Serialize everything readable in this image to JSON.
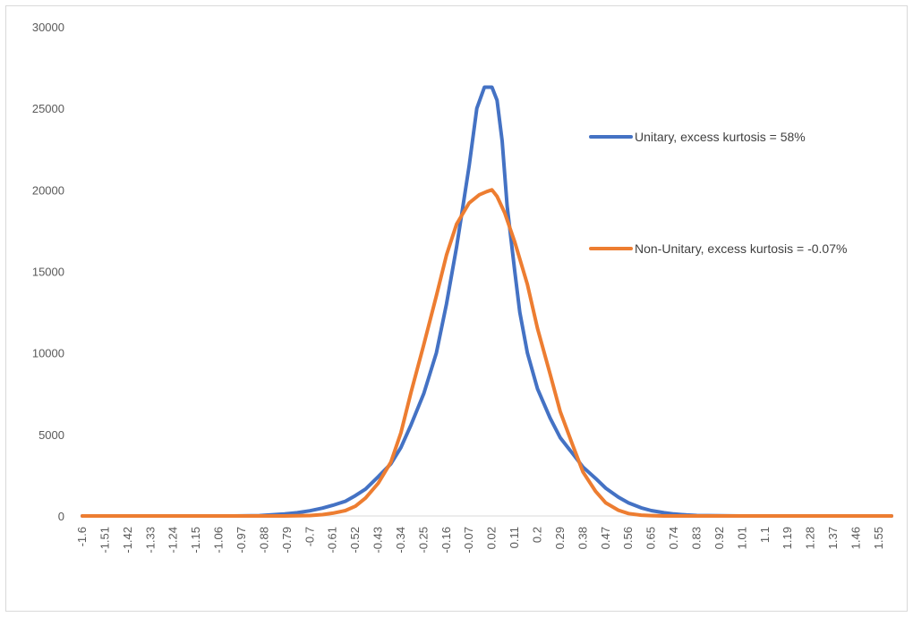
{
  "chart_data": {
    "type": "line",
    "title": "",
    "xlabel": "",
    "ylabel": "",
    "ylim": [
      0,
      30000
    ],
    "y_ticks": [
      "0",
      "5000",
      "10000",
      "15000",
      "20000",
      "25000",
      "30000"
    ],
    "x_ticks": [
      "-1.6",
      "-1.51",
      "-1.42",
      "-1.33",
      "-1.24",
      "-1.15",
      "-1.06",
      "-0.97",
      "-0.88",
      "-0.79",
      "-0.7",
      "-0.61",
      "-0.52",
      "-0.43",
      "-0.34",
      "-0.25",
      "-0.16",
      "-0.07",
      "0.02",
      "0.11",
      "0.2",
      "0.29",
      "0.38",
      "0.47",
      "0.56",
      "0.65",
      "0.74",
      "0.83",
      "0.92",
      "1.01",
      "1.1",
      "1.19",
      "1.28",
      "1.37",
      "1.46",
      "1.55"
    ],
    "xlim": [
      -1.6,
      1.6
    ],
    "grid": false,
    "legend_position": "right",
    "series": [
      {
        "name": "Unitary, excess kurtosis = 58%",
        "color": "#4472c4",
        "x": [
          -1.6,
          -1.0,
          -0.9,
          -0.88,
          -0.8,
          -0.75,
          -0.7,
          -0.65,
          -0.61,
          -0.56,
          -0.52,
          -0.48,
          -0.43,
          -0.38,
          -0.34,
          -0.3,
          -0.25,
          -0.2,
          -0.16,
          -0.12,
          -0.1,
          -0.07,
          -0.04,
          -0.01,
          0.0,
          0.02,
          0.04,
          0.06,
          0.08,
          0.11,
          0.13,
          0.16,
          0.2,
          0.25,
          0.29,
          0.34,
          0.38,
          0.43,
          0.47,
          0.52,
          0.56,
          0.61,
          0.65,
          0.7,
          0.74,
          0.79,
          0.83,
          0.92,
          1.0,
          1.6
        ],
        "y": [
          0,
          0,
          20,
          40,
          120,
          200,
          320,
          480,
          650,
          900,
          1250,
          1650,
          2400,
          3200,
          4200,
          5600,
          7500,
          10000,
          13000,
          16500,
          18500,
          21500,
          25000,
          26300,
          26300,
          26300,
          25500,
          23000,
          19000,
          15000,
          12500,
          10000,
          7800,
          6000,
          4800,
          3800,
          3000,
          2300,
          1700,
          1150,
          800,
          500,
          330,
          200,
          120,
          60,
          30,
          10,
          0,
          0
        ]
      },
      {
        "name": "Non-Unitary, excess kurtosis = -0.07%",
        "color": "#ed7d31",
        "x": [
          -1.6,
          -0.8,
          -0.7,
          -0.65,
          -0.61,
          -0.56,
          -0.52,
          -0.48,
          -0.43,
          -0.38,
          -0.34,
          -0.3,
          -0.25,
          -0.2,
          -0.16,
          -0.12,
          -0.07,
          -0.03,
          0.0,
          0.02,
          0.04,
          0.07,
          0.11,
          0.16,
          0.2,
          0.25,
          0.29,
          0.34,
          0.38,
          0.43,
          0.47,
          0.52,
          0.56,
          0.61,
          0.65,
          0.7,
          0.8,
          1.6
        ],
        "y": [
          0,
          0,
          30,
          80,
          170,
          330,
          600,
          1100,
          2000,
          3300,
          5100,
          7600,
          10500,
          13500,
          16000,
          17900,
          19200,
          19700,
          19900,
          20000,
          19600,
          18600,
          16800,
          14200,
          11500,
          8700,
          6400,
          4300,
          2700,
          1500,
          800,
          350,
          150,
          50,
          20,
          0,
          0,
          0
        ]
      }
    ]
  }
}
